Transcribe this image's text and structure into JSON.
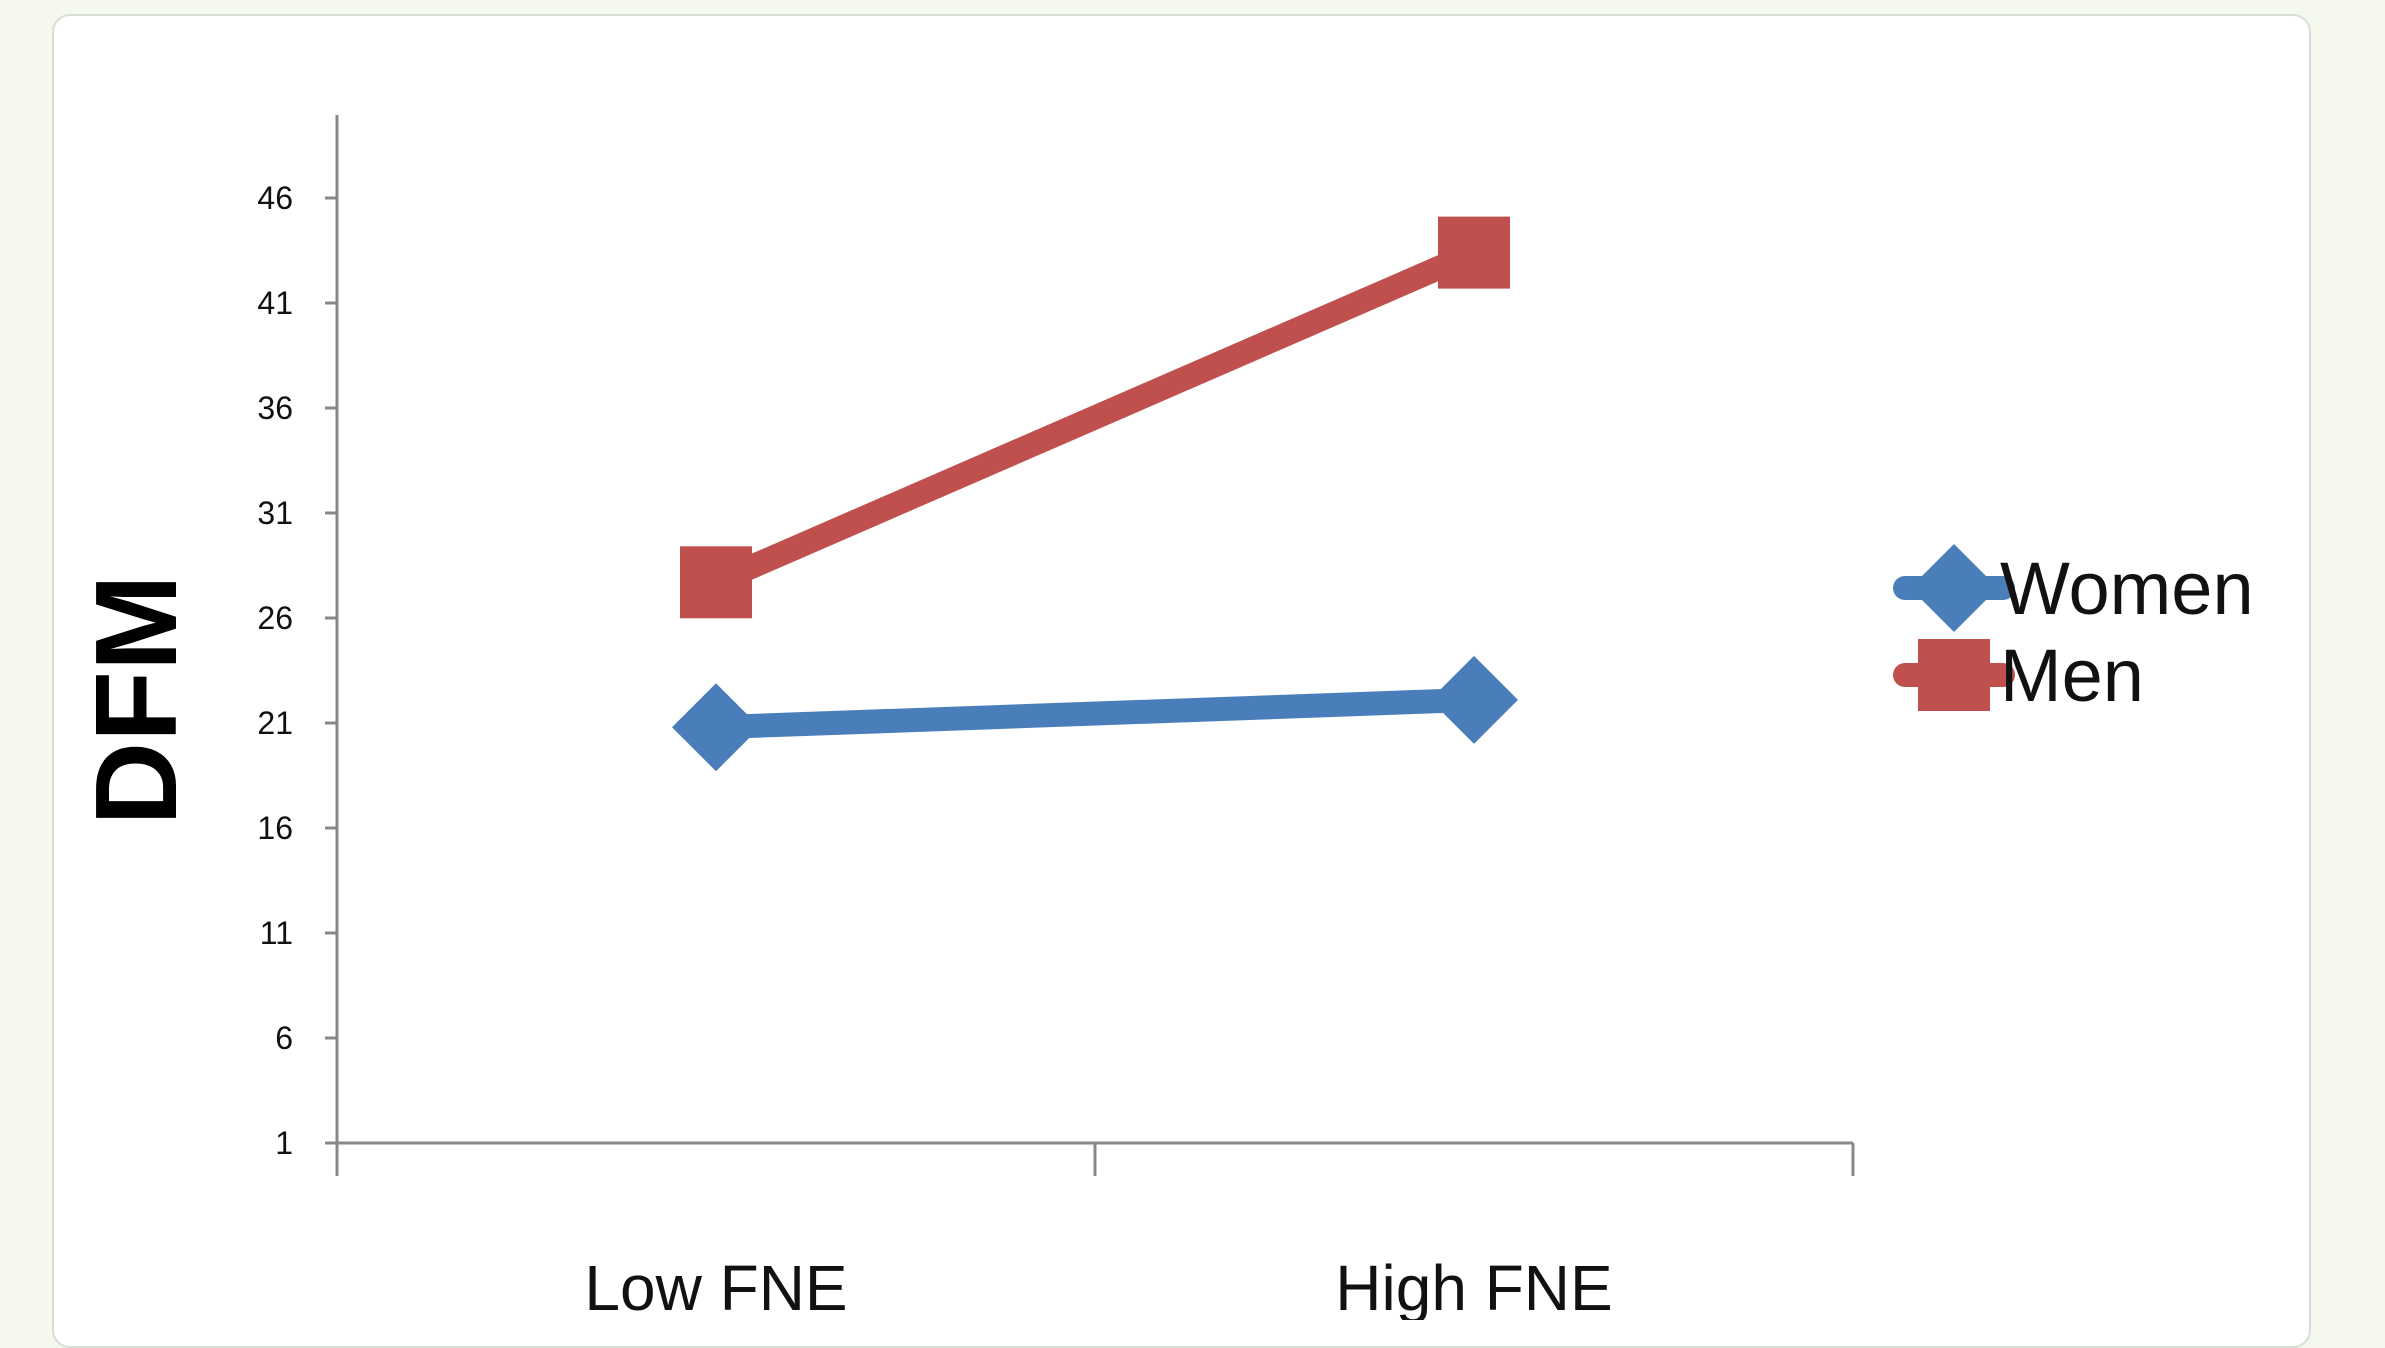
{
  "chart_data": {
    "type": "line",
    "title": "",
    "xlabel": "",
    "ylabel": "DFM",
    "categories": [
      "Low FNE",
      "High FNE"
    ],
    "yticks": [
      1,
      6,
      11,
      16,
      21,
      26,
      31,
      36,
      41,
      46
    ],
    "ylim": [
      1,
      50
    ],
    "grid": false,
    "legend_position": "right",
    "series": [
      {
        "name": "Women",
        "values": [
          20.8,
          22.1
        ],
        "color": "#4a7ebb",
        "marker": "diamond"
      },
      {
        "name": "Men",
        "values": [
          27.7,
          43.4
        ],
        "color": "#c0504d",
        "marker": "square"
      }
    ]
  }
}
